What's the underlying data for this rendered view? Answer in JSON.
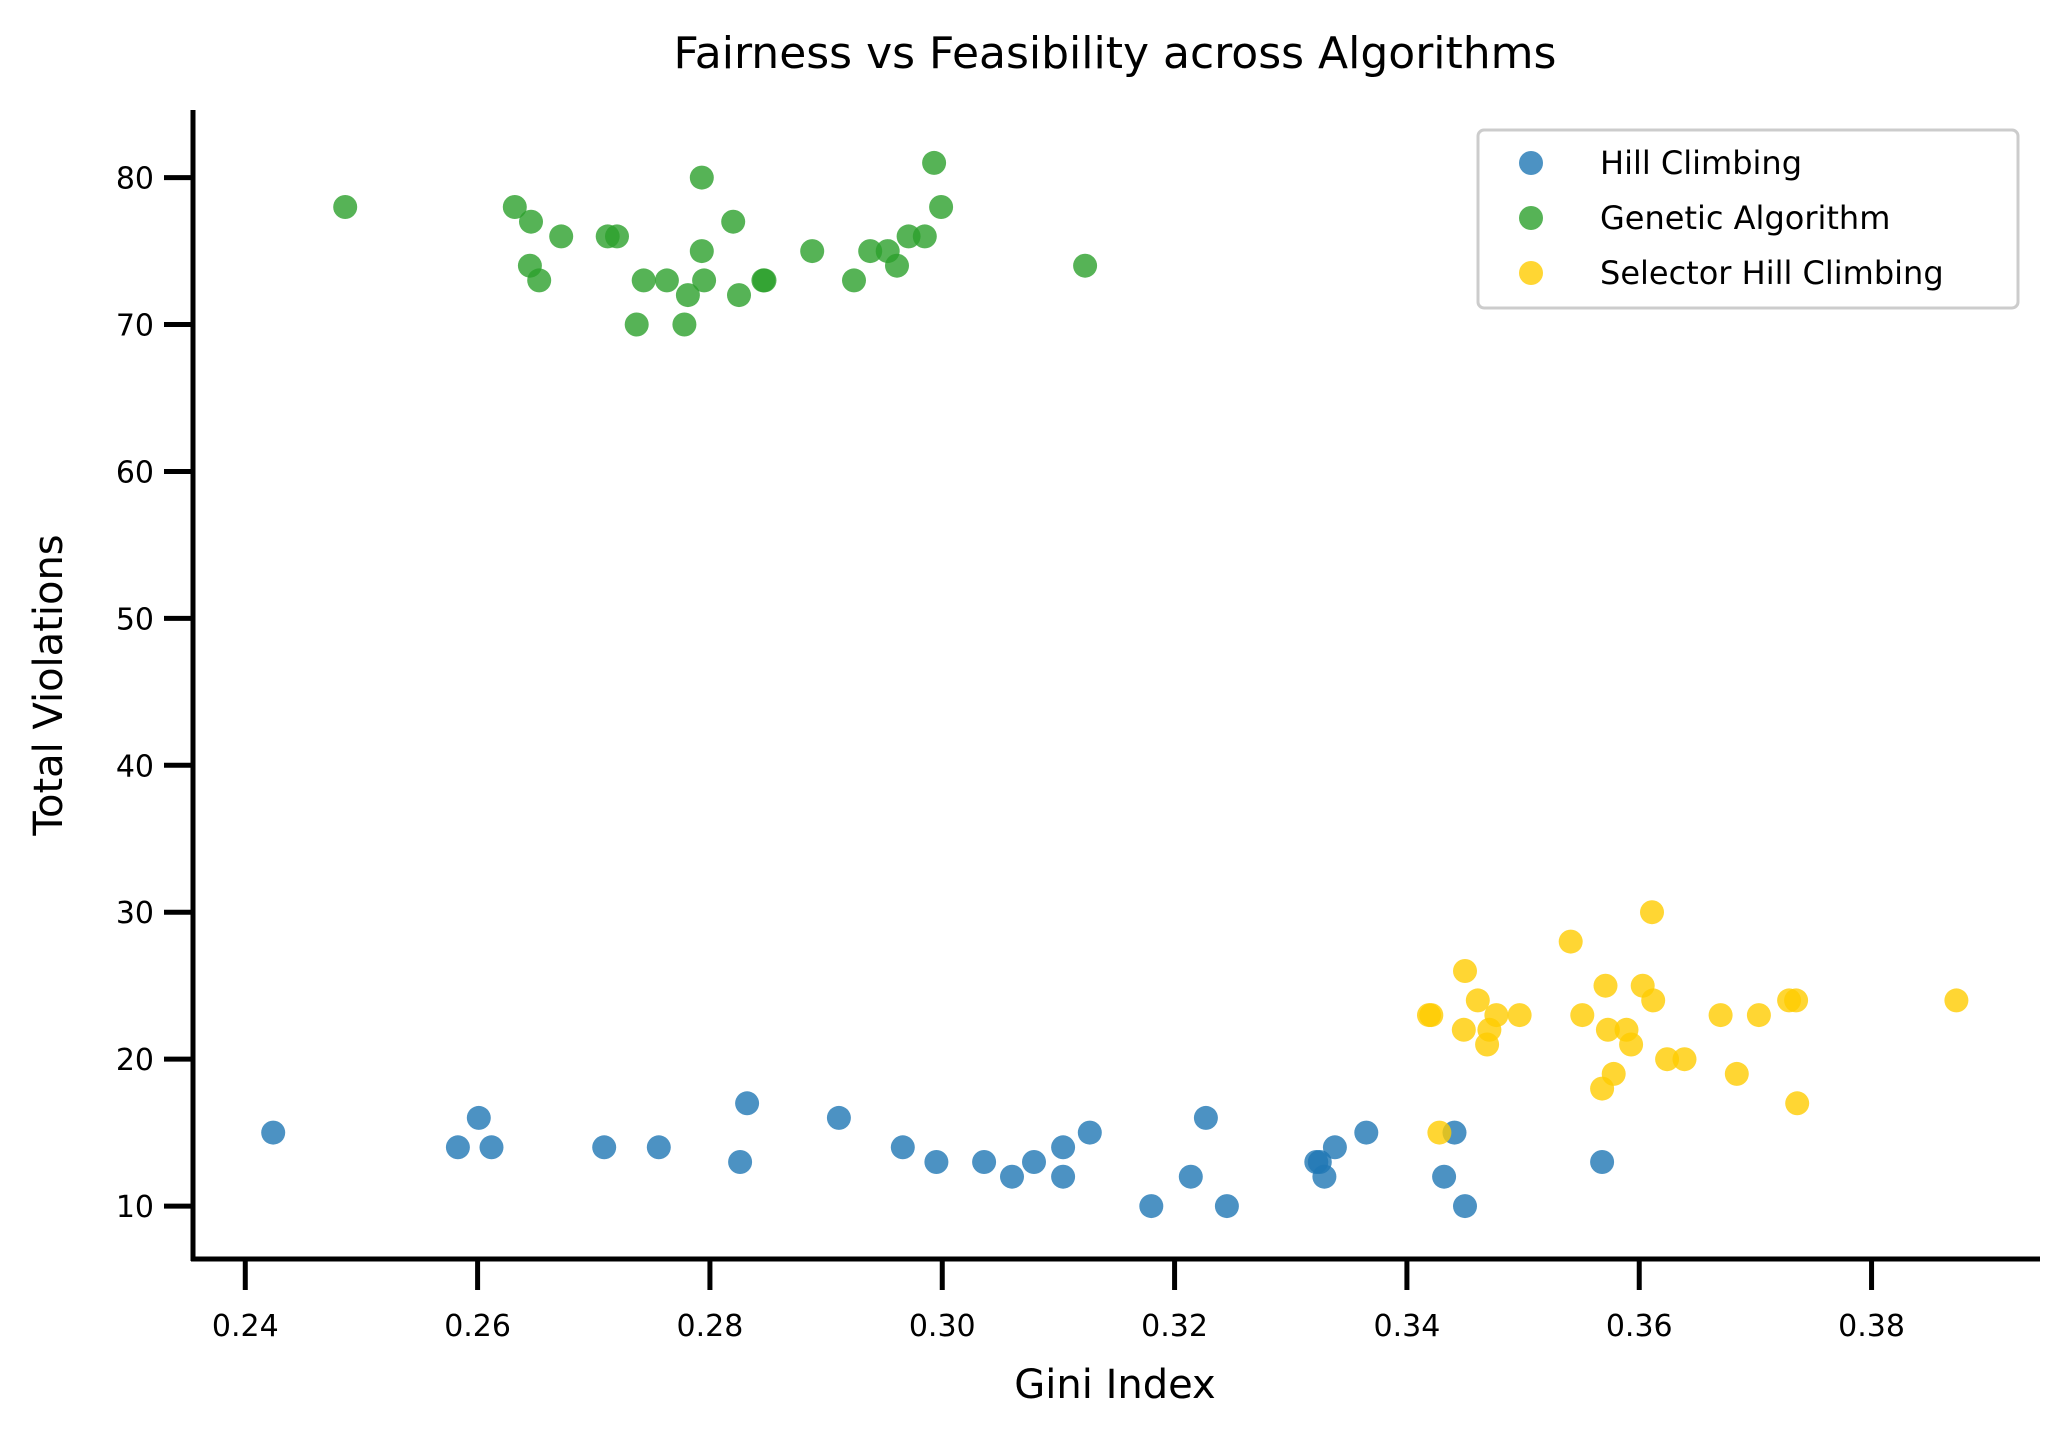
{
  "chart_data": {
    "type": "scatter",
    "title": "Fairness vs Feasibility across Algorithms",
    "xlabel": "Gini Index",
    "ylabel": "Total Violations",
    "xlim": [
      0.2355,
      0.3945
    ],
    "ylim": [
      6.4,
      84.6
    ],
    "xticks": [
      "0.24",
      "0.26",
      "0.28",
      "0.30",
      "0.32",
      "0.34",
      "0.36",
      "0.38"
    ],
    "yticks": [
      "10",
      "20",
      "30",
      "40",
      "50",
      "60",
      "70",
      "80"
    ],
    "grid": false,
    "legend_position": "top-right",
    "series": [
      {
        "name": "Hill Climbing",
        "color": "#1f77b4",
        "points": [
          [
            0.2424,
            15
          ],
          [
            0.2583,
            14
          ],
          [
            0.2601,
            16
          ],
          [
            0.2612,
            14
          ],
          [
            0.2709,
            14
          ],
          [
            0.2756,
            14
          ],
          [
            0.2826,
            13
          ],
          [
            0.2832,
            17
          ],
          [
            0.2911,
            16
          ],
          [
            0.2966,
            14
          ],
          [
            0.2995,
            13
          ],
          [
            0.3036,
            13
          ],
          [
            0.306,
            12
          ],
          [
            0.3079,
            13
          ],
          [
            0.3104,
            14
          ],
          [
            0.3104,
            12
          ],
          [
            0.3127,
            15
          ],
          [
            0.318,
            10
          ],
          [
            0.3214,
            12
          ],
          [
            0.3227,
            16
          ],
          [
            0.3245,
            10
          ],
          [
            0.3322,
            13
          ],
          [
            0.3325,
            13
          ],
          [
            0.3329,
            12
          ],
          [
            0.3338,
            14
          ],
          [
            0.3365,
            15
          ],
          [
            0.3432,
            12
          ],
          [
            0.3441,
            15
          ],
          [
            0.345,
            10
          ],
          [
            0.3568,
            13
          ]
        ]
      },
      {
        "name": "Genetic Algorithm",
        "color": "#2ca02c",
        "points": [
          [
            0.2486,
            78
          ],
          [
            0.2632,
            78
          ],
          [
            0.2646,
            77
          ],
          [
            0.2645,
            74
          ],
          [
            0.2653,
            73
          ],
          [
            0.2672,
            76
          ],
          [
            0.2712,
            76
          ],
          [
            0.272,
            76
          ],
          [
            0.2737,
            70
          ],
          [
            0.2743,
            73
          ],
          [
            0.2763,
            73
          ],
          [
            0.2778,
            70
          ],
          [
            0.2781,
            72
          ],
          [
            0.2793,
            80
          ],
          [
            0.2793,
            75
          ],
          [
            0.2795,
            73
          ],
          [
            0.282,
            77
          ],
          [
            0.2825,
            72
          ],
          [
            0.2846,
            73
          ],
          [
            0.2847,
            73
          ],
          [
            0.2888,
            75
          ],
          [
            0.2924,
            73
          ],
          [
            0.2938,
            75
          ],
          [
            0.2953,
            75
          ],
          [
            0.2961,
            74
          ],
          [
            0.2971,
            76
          ],
          [
            0.2985,
            76
          ],
          [
            0.2993,
            81
          ],
          [
            0.2999,
            78
          ],
          [
            0.3123,
            74
          ]
        ]
      },
      {
        "name": "Selector Hill Climbing",
        "color": "#ffcc00",
        "points": [
          [
            0.3419,
            23
          ],
          [
            0.3421,
            23
          ],
          [
            0.3428,
            15
          ],
          [
            0.3449,
            22
          ],
          [
            0.345,
            26
          ],
          [
            0.3461,
            24
          ],
          [
            0.3469,
            21
          ],
          [
            0.3471,
            22
          ],
          [
            0.3477,
            23
          ],
          [
            0.3497,
            23
          ],
          [
            0.3541,
            28
          ],
          [
            0.3551,
            23
          ],
          [
            0.3568,
            18
          ],
          [
            0.3571,
            25
          ],
          [
            0.3573,
            22
          ],
          [
            0.3578,
            19
          ],
          [
            0.3589,
            22
          ],
          [
            0.3593,
            21
          ],
          [
            0.3603,
            25
          ],
          [
            0.3611,
            30
          ],
          [
            0.3612,
            24
          ],
          [
            0.3624,
            20
          ],
          [
            0.3639,
            20
          ],
          [
            0.367,
            23
          ],
          [
            0.3684,
            19
          ],
          [
            0.3703,
            23
          ],
          [
            0.3729,
            24
          ],
          [
            0.3735,
            24
          ],
          [
            0.3736,
            17
          ],
          [
            0.3873,
            24
          ]
        ]
      }
    ]
  }
}
